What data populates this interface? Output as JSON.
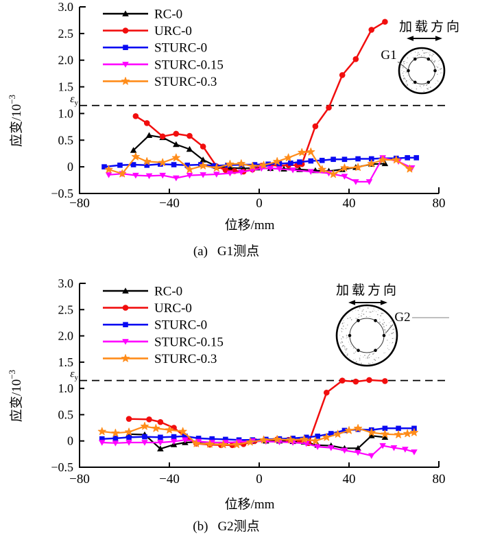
{
  "figure": {
    "background": "#ffffff",
    "series_colors": {
      "RC-0": "#000000",
      "URC-0": "#f10e0e",
      "STURC-0": "#0a0af2",
      "STURC-0.15": "#ff00ff",
      "STURC-0.3": "#ff8c1a"
    }
  },
  "chart_data": [
    {
      "type": "line",
      "caption_prefix": "(a)",
      "caption_text": "G1测点",
      "xlabel": "位移/mm",
      "ylabel": "应变/10⁻³",
      "ylabel_base": "应变/10",
      "ylabel_exponent": "−3",
      "xlim": [
        -80,
        80
      ],
      "ylim": [
        -0.5,
        3.0
      ],
      "xticks": [
        -80,
        -40,
        0,
        40,
        80
      ],
      "yticks": [
        3.0,
        2.5,
        2.0,
        1.5,
        1.0,
        0.5,
        0,
        -0.5
      ],
      "grid": false,
      "legend_position": "top-left",
      "yield_line": {
        "value": 1.15,
        "symbol": "ε",
        "subscript": "y",
        "style": "dashed"
      },
      "load_direction_label": "加载方向",
      "gauge_label": "G1",
      "series": [
        {
          "name": "RC-0",
          "color": "#000000",
          "marker": "triangle-up",
          "points": [
            [
              -56,
              0.31
            ],
            [
              -49,
              0.59
            ],
            [
              -43,
              0.55
            ],
            [
              -37,
              0.42
            ],
            [
              -31,
              0.33
            ],
            [
              -25,
              0.13
            ],
            [
              -19,
              0.01
            ],
            [
              -13,
              -0.02
            ],
            [
              -7,
              -0.03
            ],
            [
              -1,
              -0.02
            ],
            [
              5,
              -0.03
            ],
            [
              11,
              -0.04
            ],
            [
              18,
              -0.05
            ],
            [
              25,
              -0.07
            ],
            [
              31,
              -0.08
            ],
            [
              37,
              -0.05
            ],
            [
              43,
              -0.01
            ],
            [
              50,
              0.05
            ],
            [
              56,
              0.06
            ]
          ]
        },
        {
          "name": "URC-0",
          "color": "#f10e0e",
          "marker": "circle",
          "points": [
            [
              -55,
              0.95
            ],
            [
              -50,
              0.82
            ],
            [
              -43,
              0.57
            ],
            [
              -37,
              0.62
            ],
            [
              -31,
              0.58
            ],
            [
              -25,
              0.38
            ],
            [
              -19,
              0.01
            ],
            [
              -15,
              -0.06
            ],
            [
              -11,
              -0.08
            ],
            [
              -7,
              -0.09
            ],
            [
              -3,
              -0.05
            ],
            [
              1,
              0.02
            ],
            [
              5,
              0.03
            ],
            [
              9,
              0.02
            ],
            [
              13,
              0.03
            ],
            [
              17,
              0.03
            ],
            [
              19,
              0.05
            ],
            [
              25,
              0.76
            ],
            [
              31,
              1.11
            ],
            [
              37,
              1.72
            ],
            [
              43,
              2.02
            ],
            [
              50,
              2.57
            ],
            [
              56,
              2.72
            ]
          ]
        },
        {
          "name": "STURC-0",
          "color": "#0a0af2",
          "marker": "square",
          "points": [
            [
              -69,
              0.0
            ],
            [
              -62,
              0.03
            ],
            [
              -56,
              0.04
            ],
            [
              -50,
              0.03
            ],
            [
              -44,
              0.05
            ],
            [
              -38,
              0.04
            ],
            [
              -32,
              0.03
            ],
            [
              -26,
              0.04
            ],
            [
              -20,
              0.02
            ],
            [
              -14,
              0.03
            ],
            [
              -8,
              0.04
            ],
            [
              -2,
              0.04
            ],
            [
              4,
              0.05
            ],
            [
              9,
              0.06
            ],
            [
              14,
              0.07
            ],
            [
              18,
              0.09
            ],
            [
              23,
              0.11
            ],
            [
              28,
              0.12
            ],
            [
              33,
              0.14
            ],
            [
              38,
              0.14
            ],
            [
              44,
              0.15
            ],
            [
              50,
              0.15
            ],
            [
              55,
              0.16
            ],
            [
              61,
              0.16
            ],
            [
              66,
              0.17
            ],
            [
              70,
              0.17
            ]
          ]
        },
        {
          "name": "STURC-0.15",
          "color": "#ff00ff",
          "marker": "triangle-down",
          "points": [
            [
              -67,
              -0.15
            ],
            [
              -61,
              -0.13
            ],
            [
              -55,
              -0.16
            ],
            [
              -49,
              -0.17
            ],
            [
              -43,
              -0.16
            ],
            [
              -37,
              -0.21
            ],
            [
              -31,
              -0.16
            ],
            [
              -25,
              -0.15
            ],
            [
              -19,
              -0.14
            ],
            [
              -13,
              -0.12
            ],
            [
              -8,
              -0.1
            ],
            [
              -3,
              -0.06
            ],
            [
              1,
              -0.03
            ],
            [
              5,
              -0.03
            ],
            [
              9,
              -0.04
            ],
            [
              15,
              -0.06
            ],
            [
              23,
              -0.09
            ],
            [
              31,
              -0.12
            ],
            [
              38,
              -0.18
            ],
            [
              43,
              -0.28
            ],
            [
              49,
              -0.28
            ],
            [
              55,
              0.17
            ],
            [
              62,
              0.1
            ],
            [
              68,
              -0.02
            ]
          ]
        },
        {
          "name": "STURC-0.3",
          "color": "#ff8c1a",
          "marker": "star",
          "points": [
            [
              -67,
              -0.05
            ],
            [
              -61,
              -0.13
            ],
            [
              -55,
              0.19
            ],
            [
              -50,
              0.1
            ],
            [
              -43,
              0.08
            ],
            [
              -37,
              0.17
            ],
            [
              -31,
              -0.05
            ],
            [
              -25,
              0.02
            ],
            [
              -19,
              -0.02
            ],
            [
              -13,
              0.05
            ],
            [
              -8,
              0.06
            ],
            [
              -3,
              0.01
            ],
            [
              2,
              0.03
            ],
            [
              8,
              0.1
            ],
            [
              13,
              0.17
            ],
            [
              19,
              0.27
            ],
            [
              23,
              0.28
            ],
            [
              28,
              -0.05
            ],
            [
              33,
              -0.14
            ],
            [
              38,
              -0.02
            ],
            [
              44,
              -0.01
            ],
            [
              50,
              0.06
            ],
            [
              55,
              0.13
            ],
            [
              61,
              0.13
            ],
            [
              67,
              -0.04
            ]
          ]
        }
      ]
    },
    {
      "type": "line",
      "caption_prefix": "(b)",
      "caption_text": "G2测点",
      "xlabel": "位移/mm",
      "ylabel": "应变/10⁻³",
      "ylabel_base": "应变/10",
      "ylabel_exponent": "−3",
      "xlim": [
        -80,
        80
      ],
      "ylim": [
        -0.5,
        3.0
      ],
      "xticks": [
        -80,
        -40,
        0,
        40,
        80
      ],
      "yticks": [
        3.0,
        2.5,
        2.0,
        1.5,
        1.0,
        0.5,
        0,
        -0.5
      ],
      "grid": false,
      "legend_position": "top-left",
      "yield_line": {
        "value": 1.15,
        "symbol": "ε",
        "subscript": "y",
        "style": "dashed"
      },
      "load_direction_label": "加载方向",
      "gauge_label": "G2",
      "series": [
        {
          "name": "RC-0",
          "color": "#000000",
          "marker": "triangle-up",
          "points": [
            [
              -58,
              0.13
            ],
            [
              -51,
              0.12
            ],
            [
              -44,
              -0.15
            ],
            [
              -38,
              -0.07
            ],
            [
              -33,
              -0.03
            ],
            [
              -27,
              -0.02
            ],
            [
              -21,
              -0.03
            ],
            [
              -15,
              -0.03
            ],
            [
              -9,
              -0.02
            ],
            [
              -3,
              -0.01
            ],
            [
              3,
              0.0
            ],
            [
              9,
              0.0
            ],
            [
              15,
              -0.01
            ],
            [
              20,
              -0.02
            ],
            [
              26,
              -0.08
            ],
            [
              32,
              -0.09
            ],
            [
              38,
              -0.14
            ],
            [
              44,
              -0.14
            ],
            [
              50,
              0.1
            ],
            [
              56,
              0.07
            ]
          ]
        },
        {
          "name": "URC-0",
          "color": "#f10e0e",
          "marker": "circle",
          "points": [
            [
              -58,
              0.42
            ],
            [
              -49,
              0.41
            ],
            [
              -44,
              0.36
            ],
            [
              -38,
              0.25
            ],
            [
              -32,
              0.05
            ],
            [
              -28,
              -0.05
            ],
            [
              -22,
              -0.07
            ],
            [
              -17,
              -0.08
            ],
            [
              -12,
              -0.08
            ],
            [
              -7,
              -0.06
            ],
            [
              -2,
              0.0
            ],
            [
              3,
              0.02
            ],
            [
              8,
              0.03
            ],
            [
              13,
              0.02
            ],
            [
              18,
              0.01
            ],
            [
              22,
              -0.04
            ],
            [
              30,
              0.92
            ],
            [
              37,
              1.15
            ],
            [
              43,
              1.13
            ],
            [
              49,
              1.16
            ],
            [
              56,
              1.14
            ]
          ]
        },
        {
          "name": "STURC-0",
          "color": "#0a0af2",
          "marker": "square",
          "points": [
            [
              -70,
              0.04
            ],
            [
              -64,
              0.05
            ],
            [
              -58,
              0.07
            ],
            [
              -51,
              0.08
            ],
            [
              -44,
              0.07
            ],
            [
              -38,
              0.08
            ],
            [
              -33,
              0.09
            ],
            [
              -27,
              0.05
            ],
            [
              -21,
              0.04
            ],
            [
              -15,
              0.03
            ],
            [
              -9,
              0.02
            ],
            [
              -3,
              0.02
            ],
            [
              3,
              0.03
            ],
            [
              9,
              0.04
            ],
            [
              15,
              0.05
            ],
            [
              21,
              0.07
            ],
            [
              26,
              0.09
            ],
            [
              32,
              0.14
            ],
            [
              38,
              0.2
            ],
            [
              44,
              0.22
            ],
            [
              50,
              0.21
            ],
            [
              56,
              0.24
            ],
            [
              62,
              0.24
            ],
            [
              69,
              0.24
            ]
          ]
        },
        {
          "name": "STURC-0.15",
          "color": "#ff00ff",
          "marker": "triangle-down",
          "points": [
            [
              -70,
              -0.03
            ],
            [
              -64,
              -0.04
            ],
            [
              -58,
              -0.03
            ],
            [
              -51,
              -0.03
            ],
            [
              -44,
              -0.03
            ],
            [
              -38,
              -0.01
            ],
            [
              -33,
              0.02
            ],
            [
              -27,
              -0.01
            ],
            [
              -21,
              -0.03
            ],
            [
              -15,
              -0.03
            ],
            [
              -9,
              -0.02
            ],
            [
              -3,
              0.0
            ],
            [
              3,
              -0.01
            ],
            [
              9,
              -0.02
            ],
            [
              15,
              -0.03
            ],
            [
              21,
              -0.05
            ],
            [
              26,
              -0.11
            ],
            [
              32,
              -0.13
            ],
            [
              38,
              -0.18
            ],
            [
              44,
              -0.22
            ],
            [
              50,
              -0.28
            ],
            [
              55,
              -0.09
            ],
            [
              60,
              -0.13
            ],
            [
              65,
              -0.16
            ],
            [
              69,
              -0.21
            ]
          ]
        },
        {
          "name": "STURC-0.3",
          "color": "#ff8c1a",
          "marker": "star",
          "points": [
            [
              -70,
              0.18
            ],
            [
              -64,
              0.15
            ],
            [
              -58,
              0.17
            ],
            [
              -51,
              0.28
            ],
            [
              -46,
              0.24
            ],
            [
              -40,
              0.21
            ],
            [
              -34,
              0.18
            ],
            [
              -28,
              -0.05
            ],
            [
              -22,
              -0.06
            ],
            [
              -16,
              -0.07
            ],
            [
              -10,
              -0.07
            ],
            [
              -4,
              -0.02
            ],
            [
              2,
              0.02
            ],
            [
              8,
              0.03
            ],
            [
              14,
              0.02
            ],
            [
              20,
              0.03
            ],
            [
              25,
              0.0
            ],
            [
              30,
              0.07
            ],
            [
              35,
              0.13
            ],
            [
              40,
              0.2
            ],
            [
              44,
              0.24
            ],
            [
              50,
              0.16
            ],
            [
              56,
              0.13
            ],
            [
              62,
              0.12
            ],
            [
              66,
              0.14
            ],
            [
              69,
              0.16
            ]
          ]
        }
      ]
    }
  ]
}
